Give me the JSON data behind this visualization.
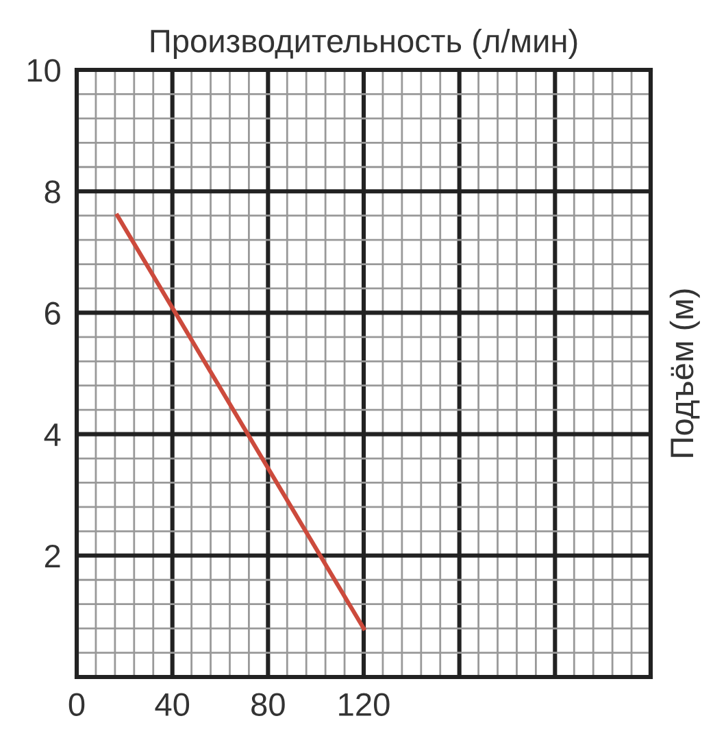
{
  "chart_data": {
    "type": "line",
    "xlabel": "Производительность (л/мин)",
    "ylabel": "Подъём (м)",
    "x": [
      17,
      120
    ],
    "series": [
      {
        "color": "#cc4a3c",
        "values": [
          7.6,
          0.8
        ]
      }
    ],
    "xlim": [
      0,
      240
    ],
    "ylim": [
      0,
      10
    ],
    "xticks": [
      0,
      40,
      80,
      120,
      {
        "value": 160,
        "label": null
      },
      {
        "value": 200,
        "label": null
      },
      {
        "value": 240,
        "label": null
      }
    ],
    "yticks": [
      {
        "value": 0,
        "label": null
      },
      2,
      4,
      6,
      8,
      10
    ],
    "grid": true,
    "legend": false,
    "marker": "none",
    "line_style": "solid"
  }
}
